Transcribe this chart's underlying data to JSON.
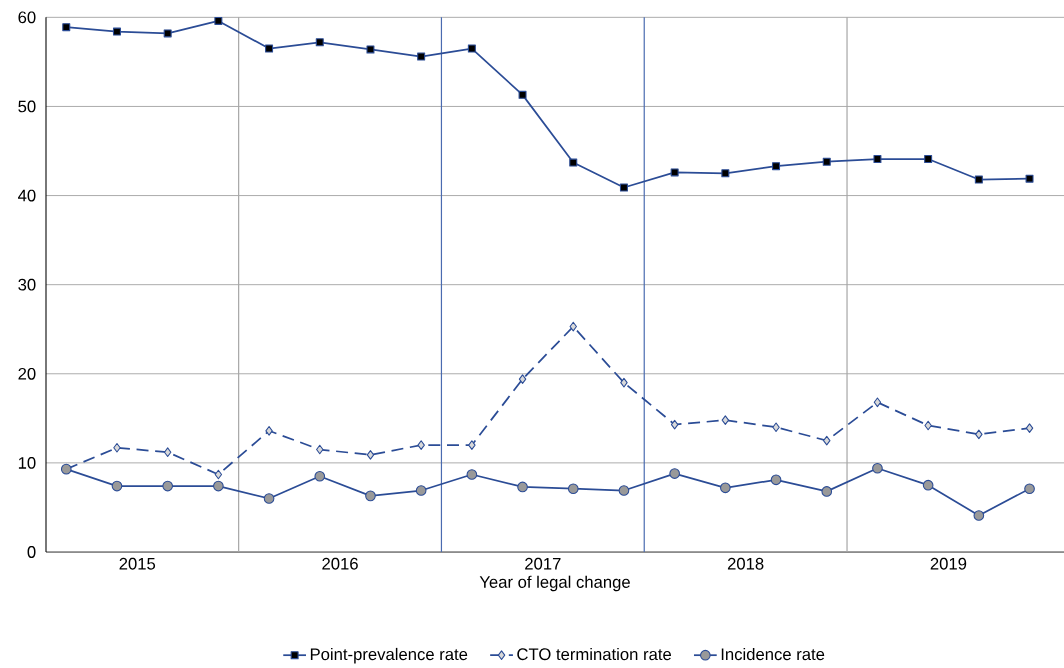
{
  "chart_data": {
    "type": "line",
    "xlabel": "Year of legal change",
    "x": [
      2015.15,
      2015.4,
      2015.65,
      2015.9,
      2016.15,
      2016.4,
      2016.65,
      2016.9,
      2017.15,
      2017.4,
      2017.65,
      2017.9,
      2018.15,
      2018.4,
      2018.65,
      2018.9,
      2019.15,
      2019.4,
      2019.65,
      2019.9
    ],
    "xlim": [
      2015.05,
      2020.07
    ],
    "xticks": [
      {
        "value": 2015.5,
        "label": "2015"
      },
      {
        "value": 2016.5,
        "label": "2016"
      },
      {
        "value": 2017.5,
        "label": "2017"
      },
      {
        "value": 2018.5,
        "label": "2018"
      },
      {
        "value": 2019.5,
        "label": "2019"
      }
    ],
    "ylim": [
      0,
      60
    ],
    "yticks": [
      0,
      10,
      20,
      30,
      40,
      50,
      60
    ],
    "grid": "y",
    "legend": "bottom",
    "series": [
      {
        "name": "Point-prevalence rate",
        "color": "#2b4c96",
        "marker": "square",
        "line_style": "solid",
        "values": [
          58.9,
          58.4,
          58.2,
          59.6,
          56.5,
          57.2,
          56.4,
          55.6,
          56.5,
          51.3,
          43.7,
          40.9,
          42.6,
          42.5,
          43.3,
          43.8,
          44.1,
          44.1,
          41.8,
          41.9
        ]
      },
      {
        "name": "CTO termination rate",
        "color": "#2b4c96",
        "marker": "diamond",
        "line_style": "dashed",
        "values": [
          9.3,
          11.7,
          11.2,
          8.7,
          13.6,
          11.5,
          10.9,
          12.0,
          12.0,
          19.4,
          25.3,
          19.0,
          14.3,
          14.8,
          14.0,
          12.5,
          16.8,
          14.2,
          13.2,
          13.9
        ]
      },
      {
        "name": "Incidence rate",
        "color": "#2b4c96",
        "marker": "circle",
        "line_style": "solid",
        "values": [
          9.3,
          7.4,
          7.4,
          7.4,
          6.0,
          8.5,
          6.3,
          6.9,
          8.7,
          7.3,
          7.1,
          6.9,
          8.8,
          7.2,
          8.1,
          6.8,
          9.4,
          7.5,
          4.1,
          7.1
        ]
      }
    ],
    "ref_lines": [
      {
        "axis": "x",
        "value": 2016,
        "color": "#a6a6a6"
      },
      {
        "axis": "x",
        "value": 2017,
        "color": "#4a6bb0"
      },
      {
        "axis": "x",
        "value": 2018,
        "color": "#4a6bb0"
      },
      {
        "axis": "x",
        "value": 2019,
        "color": "#a6a6a6"
      }
    ]
  }
}
